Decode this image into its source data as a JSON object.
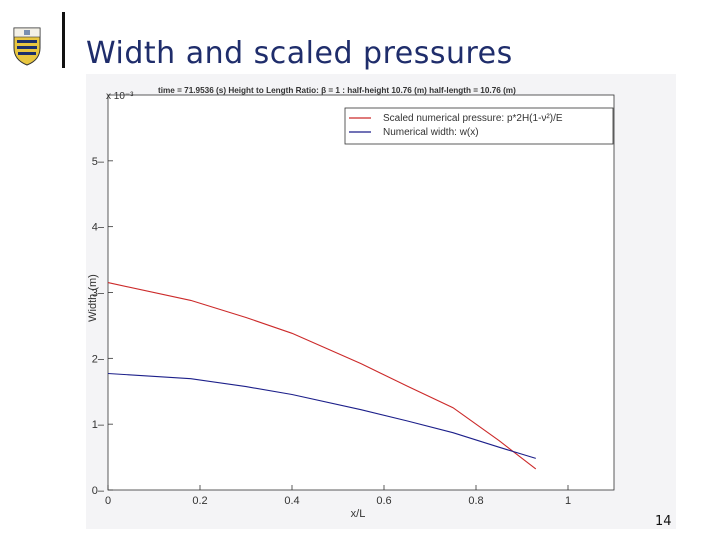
{
  "slide": {
    "title": "Width and scaled pressures",
    "page_number": "14"
  },
  "colors": {
    "title": "#1f2d6b",
    "pressure": "#cc2a2a",
    "width": "#1c1f8a"
  },
  "chart_data": {
    "type": "line",
    "title": "time = 71.9536 (s)  Height to Length Ratio: β = 1 :  half-height 10.76 (m) half-length = 10.76 (m)",
    "xlabel": "x/L",
    "ylabel": "Width (m)",
    "exponent_label": "x 10⁻³",
    "xlim": [
      0,
      1.1
    ],
    "ylim": [
      0,
      6
    ],
    "xticks": [
      "0",
      "0.2",
      "0.4",
      "0.6",
      "0.8",
      "1"
    ],
    "yticks": [
      "0",
      "1",
      "2",
      "3",
      "4",
      "5"
    ],
    "legend_position": "top-right",
    "series": [
      {
        "name": "Scaled numerical pressure: p*2H(1-ν²)/E",
        "color": "#cc2a2a",
        "x": [
          0,
          0.18,
          0.3,
          0.4,
          0.55,
          0.65,
          0.75,
          0.85,
          0.93
        ],
        "y": [
          3.15,
          2.88,
          2.62,
          2.38,
          1.92,
          1.58,
          1.25,
          0.75,
          0.32
        ]
      },
      {
        "name": "Numerical width: w(x)",
        "color": "#1c1f8a",
        "x": [
          0,
          0.18,
          0.3,
          0.4,
          0.55,
          0.65,
          0.75,
          0.85,
          0.93
        ],
        "y": [
          1.77,
          1.69,
          1.57,
          1.45,
          1.22,
          1.05,
          0.87,
          0.65,
          0.48
        ]
      }
    ]
  }
}
